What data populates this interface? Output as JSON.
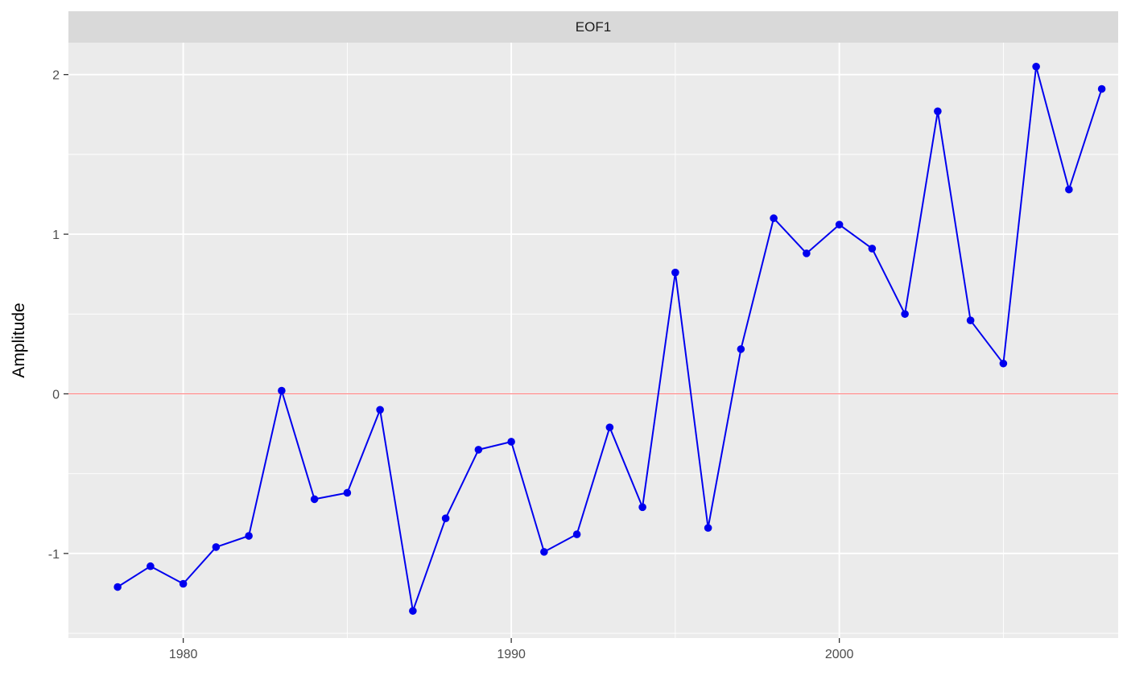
{
  "chart_data": {
    "type": "line",
    "panel_title": "EOF1",
    "xlabel": "",
    "ylabel": "Amplitude",
    "xlim": [
      1976.5,
      1968.5
    ],
    "ylim": [
      -1.53,
      2.2
    ],
    "x_ticks": [
      1980,
      1990,
      2000
    ],
    "x_minor_ticks": [
      1975,
      1985,
      1995,
      2005
    ],
    "y_ticks": [
      -1,
      0,
      1,
      2
    ],
    "y_minor_ticks": [
      -1.5,
      -0.5,
      0.5,
      1.5
    ],
    "grid": true,
    "reference_line": {
      "y": 0,
      "color": "#ff7f7f"
    },
    "series": [
      {
        "color": "#0000ee",
        "x": [
          1978,
          1979,
          1980,
          1981,
          1982,
          1983,
          1984,
          1985,
          1986,
          1987,
          1988,
          1989,
          1990,
          1991,
          1992,
          1993,
          1994,
          1995,
          1996,
          1997,
          1998,
          1999,
          2000,
          2001,
          2002,
          2003,
          2004,
          2005,
          2006,
          2007,
          2008
        ],
        "y": [
          -1.21,
          -1.08,
          -1.19,
          -0.96,
          -0.89,
          0.02,
          -0.66,
          -0.62,
          -0.1,
          -1.36,
          -0.78,
          -0.35,
          -0.3,
          -0.99,
          -0.88,
          -0.21,
          -0.71,
          0.76,
          -0.84,
          0.28,
          1.1,
          0.88,
          1.06,
          0.91,
          0.5,
          1.77,
          0.46,
          0.19,
          2.05,
          1.28,
          1.91
        ]
      }
    ]
  }
}
